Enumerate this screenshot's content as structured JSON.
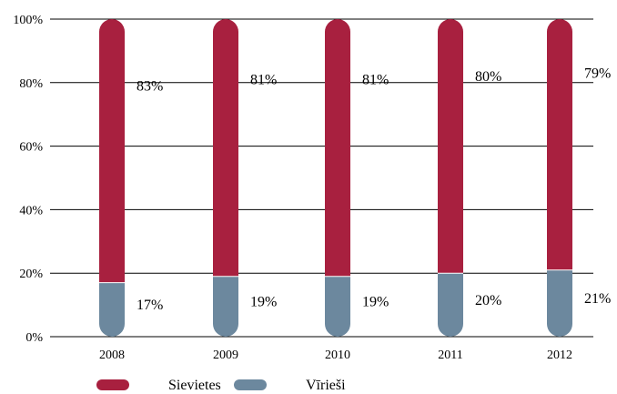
{
  "chart_data": {
    "type": "bar",
    "stacked": true,
    "categories": [
      "2008",
      "2009",
      "2010",
      "2011",
      "2012"
    ],
    "series": [
      {
        "name": "Vīrieši",
        "values": [
          17,
          19,
          19,
          20,
          21
        ],
        "labels": [
          "17%",
          "19%",
          "19%",
          "20%",
          "21%"
        ]
      },
      {
        "name": "Sievietes",
        "values": [
          83,
          81,
          81,
          80,
          79
        ],
        "labels": [
          "83%",
          "81%",
          "81%",
          "80%",
          "79%"
        ]
      }
    ],
    "y_ticks": [
      "0%",
      "20%",
      "40%",
      "60%",
      "80%",
      "100%"
    ],
    "ylim": [
      0,
      100
    ],
    "grid": true,
    "legend_position": "bottom-left",
    "legend": [
      {
        "name": "Sievietes",
        "color": "#a8203f"
      },
      {
        "name": "Vīrieši",
        "color": "#6c889e"
      }
    ],
    "colors": {
      "Sievietes": "#a8203f",
      "Vīrieši": "#6c889e"
    }
  }
}
